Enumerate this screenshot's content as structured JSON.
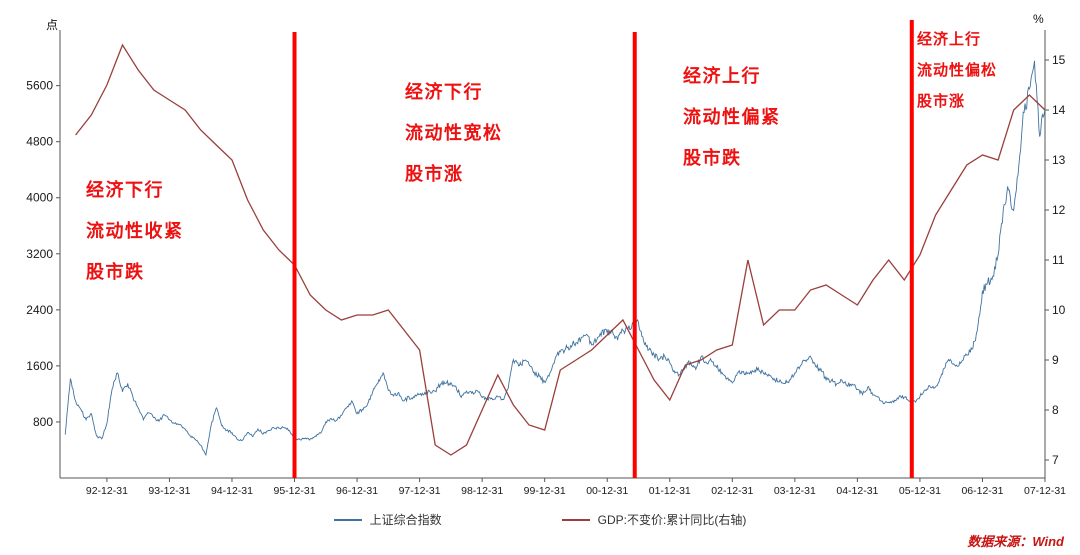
{
  "units": {
    "left": "点",
    "right": "%"
  },
  "colors": {
    "annotation_red": "#ee1111",
    "event_line_red": "#ff0000",
    "source_red": "#c81414",
    "sse_blue": "#3f72a0",
    "gdp_maroon": "#9a3f3b"
  },
  "annotations": [
    {
      "text": "经济下行\n流动性收紧\n股市跌",
      "region": "1993-1995"
    },
    {
      "text": "经济下行\n流动性宽松\n股市涨",
      "region": "1996-2001"
    },
    {
      "text": "经济上行\n流动性偏紧\n股市跌",
      "region": "2001-2005"
    },
    {
      "text": "经济上行\n流动性偏松\n股市涨",
      "region": "2006-2007"
    }
  ],
  "legend": [
    {
      "label": "上证综合指数"
    },
    {
      "label": "GDP:不变价:累计同比(右轴)"
    }
  ],
  "source": {
    "text": "数据来源：Wind"
  },
  "chart_data": {
    "type": "line",
    "title": "",
    "x_tick_labels": [
      "92-12-31",
      "93-12-31",
      "94-12-31",
      "95-12-31",
      "96-12-31",
      "97-12-31",
      "98-12-31",
      "99-12-31",
      "00-12-31",
      "01-12-31",
      "02-12-31",
      "03-12-31",
      "04-12-31",
      "05-12-31",
      "06-12-31",
      "07-12-31"
    ],
    "x_range": [
      1992.25,
      2008.0
    ],
    "left_axis": {
      "label": "点",
      "ticks": [
        800,
        1600,
        2400,
        3200,
        4000,
        4800,
        5600
      ],
      "range": [
        0,
        6280
      ]
    },
    "right_axis": {
      "label": "%",
      "ticks": [
        7,
        8,
        9,
        10,
        11,
        12,
        13,
        14,
        15
      ],
      "range": [
        6.64,
        15.44
      ]
    },
    "event_line_color": "#ff0000",
    "event_lines": [
      {
        "x": 1996.0,
        "label": "95-12-31"
      },
      {
        "x": 2001.44,
        "label": "2001-06"
      },
      {
        "x": 2005.87,
        "label": "2005-11"
      }
    ],
    "series": [
      {
        "name": "上证综合指数",
        "axis": "left",
        "color": "#3f72a0",
        "noisy": true,
        "x_start": 1992.3333,
        "x_step": 0.08333,
        "values": [
          620,
          1420,
          1100,
          980,
          830,
          920,
          600,
          560,
          780,
          1270,
          1500,
          1230,
          1350,
          1150,
          1000,
          830,
          930,
          860,
          810,
          900,
          833,
          780,
          760,
          700,
          600,
          550,
          470,
          330,
          750,
          1000,
          750,
          680,
          648,
          550,
          540,
          650,
          590,
          700,
          630,
          680,
          720,
          710,
          720,
          680,
          555,
          550,
          560,
          555,
          600,
          640,
          800,
          850,
          820,
          890,
          1000,
          1100,
          917,
          980,
          1050,
          1230,
          1350,
          1500,
          1250,
          1170,
          1220,
          1100,
          1150,
          1150,
          1194,
          1220,
          1230,
          1240,
          1340,
          1350,
          1360,
          1300,
          1150,
          1240,
          1210,
          1250,
          1147,
          1130,
          1120,
          1160,
          1120,
          1280,
          1690,
          1600,
          1670,
          1620,
          1510,
          1450,
          1367,
          1500,
          1700,
          1800,
          1840,
          1890,
          1930,
          2000,
          2050,
          1900,
          1970,
          2100,
          2073,
          2100,
          1970,
          2110,
          2130,
          2200,
          2218,
          1950,
          1830,
          1760,
          1700,
          1740,
          1646,
          1500,
          1480,
          1600,
          1650,
          1550,
          1730,
          1650,
          1670,
          1580,
          1510,
          1420,
          1357,
          1500,
          1510,
          1500,
          1520,
          1570,
          1490,
          1480,
          1420,
          1370,
          1350,
          1400,
          1497,
          1590,
          1680,
          1740,
          1590,
          1560,
          1400,
          1390,
          1340,
          1400,
          1320,
          1340,
          1266,
          1190,
          1300,
          1180,
          1160,
          1060,
          1080,
          1080,
          1160,
          1155,
          1092,
          1099,
          1161,
          1258,
          1299,
          1298,
          1440,
          1641,
          1672,
          1612,
          1658,
          1752,
          1837,
          2099,
          2675,
          2786,
          2881,
          3183,
          3841,
          4109,
          3820,
          4471,
          5218,
          5552,
          5955,
          4872,
          5262
        ]
      },
      {
        "name": "GDP:不变价:累计同比(右轴)",
        "axis": "right",
        "color": "#9a3f3b",
        "noisy": false,
        "x_start": 1992.5,
        "x_step": 0.25,
        "values": [
          13.5,
          13.9,
          14.5,
          15.3,
          14.8,
          14.4,
          14.2,
          14.0,
          13.6,
          13.3,
          13.0,
          12.2,
          11.6,
          11.2,
          10.9,
          10.3,
          10.0,
          9.8,
          9.9,
          9.9,
          10.0,
          9.6,
          9.2,
          7.3,
          7.1,
          7.3,
          8.0,
          8.7,
          8.1,
          7.7,
          7.6,
          8.8,
          9.0,
          9.2,
          9.5,
          9.8,
          9.2,
          8.6,
          8.2,
          8.9,
          9.0,
          9.2,
          9.3,
          11.0,
          9.7,
          10.0,
          10.0,
          10.4,
          10.5,
          10.3,
          10.1,
          10.6,
          11.0,
          10.6,
          11.1,
          11.9,
          12.4,
          12.9,
          13.1,
          13.0,
          14.0,
          14.3,
          14.0
        ]
      }
    ]
  }
}
